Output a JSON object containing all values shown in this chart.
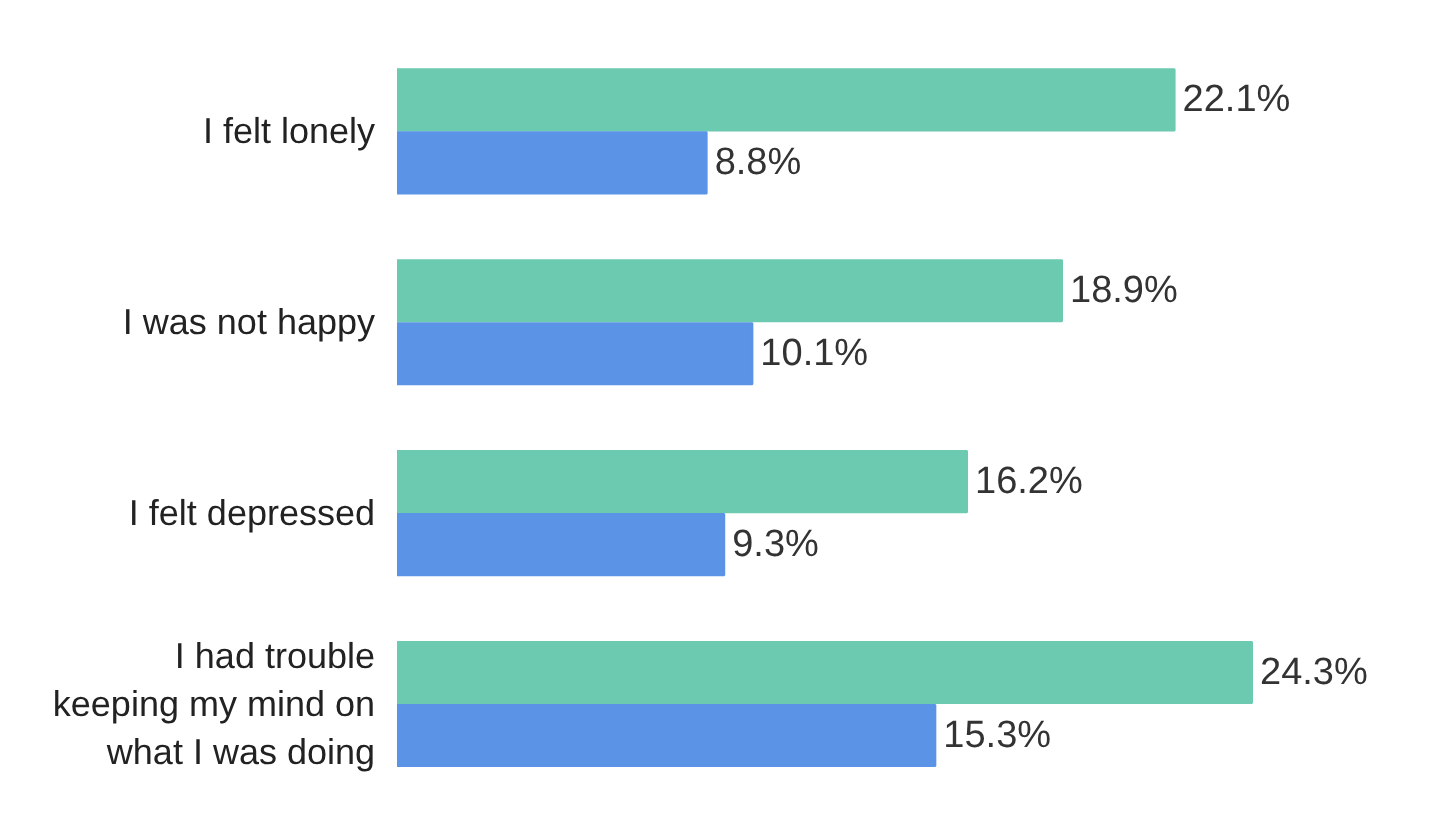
{
  "chart_data": {
    "type": "bar",
    "orientation": "horizontal",
    "categories": [
      "I felt lonely",
      "I was not happy",
      "I felt depressed",
      "I had trouble keeping my mind on what I was doing"
    ],
    "series": [
      {
        "color": "#6ccab0",
        "values": [
          22.1,
          18.9,
          16.2,
          24.3
        ],
        "value_labels": [
          "22.1%",
          "18.9%",
          "16.2%",
          "24.3%"
        ]
      },
      {
        "color": "#5b93e6",
        "values": [
          8.8,
          10.1,
          9.3,
          15.3
        ],
        "value_labels": [
          "8.8%",
          "10.1%",
          "9.3%",
          "15.3%"
        ]
      }
    ],
    "grid": false
  }
}
